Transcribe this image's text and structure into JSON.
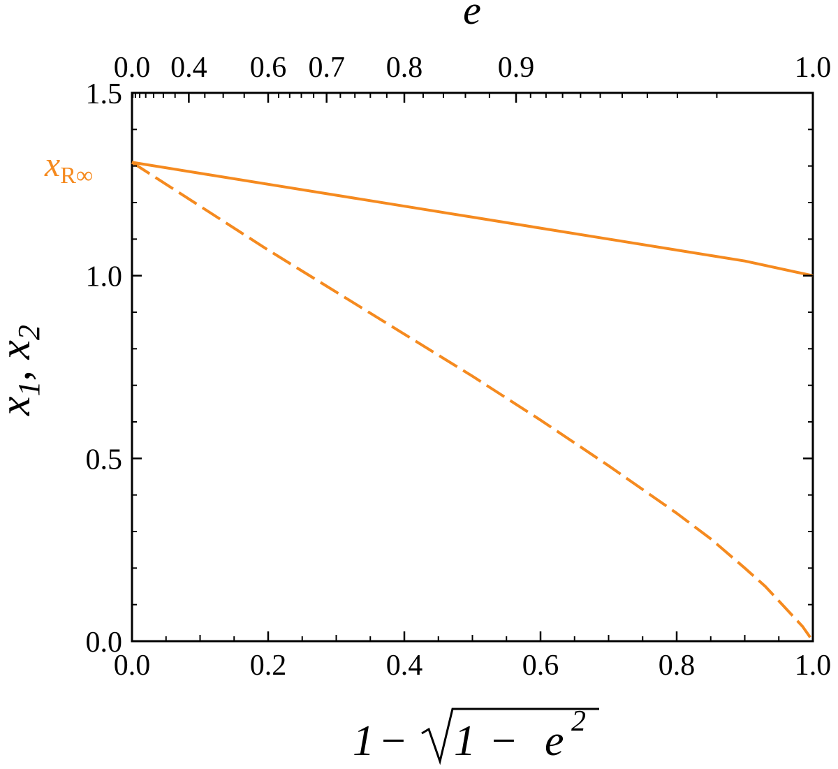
{
  "chart_data": {
    "type": "line",
    "title": "",
    "xlabel": {
      "parts": [
        "1",
        "−",
        "1",
        "−",
        "e",
        "2"
      ]
    },
    "ylabel": {
      "parts": [
        "x",
        "1",
        ", ",
        "x",
        "2"
      ]
    },
    "top_xlabel": "e",
    "xlim": [
      0,
      1
    ],
    "ylim": [
      0,
      1.5
    ],
    "x_ticks": [
      0.0,
      0.2,
      0.4,
      0.6,
      0.8,
      1.0
    ],
    "x_tick_labels": [
      "0.0",
      "0.2",
      "0.4",
      "0.6",
      "0.8",
      "1.0"
    ],
    "y_ticks": [
      0.0,
      0.5,
      1.0,
      1.5
    ],
    "y_tick_labels": [
      "0.0",
      "0.5",
      "1.0",
      "1.5"
    ],
    "top_ticks": [
      0.0,
      0.4,
      0.6,
      0.7,
      0.8,
      0.9,
      1.0
    ],
    "top_tick_labels": [
      "0.0",
      "0.4",
      "0.6",
      "0.7",
      "0.8",
      "0.9",
      "1.0"
    ],
    "grid": false,
    "series": [
      {
        "style": "solid",
        "color": "#F58A1F",
        "x": [
          0.0,
          0.1,
          0.2,
          0.3,
          0.4,
          0.5,
          0.6,
          0.7,
          0.8,
          0.9,
          1.0
        ],
        "y": [
          1.31,
          1.28,
          1.25,
          1.22,
          1.19,
          1.16,
          1.13,
          1.1,
          1.07,
          1.04,
          1.0
        ]
      },
      {
        "style": "dashed",
        "color": "#F58A1F",
        "x": [
          0.0,
          0.1,
          0.2,
          0.3,
          0.4,
          0.5,
          0.6,
          0.7,
          0.8,
          0.85,
          0.9,
          0.93,
          0.95,
          0.97,
          0.985,
          1.0
        ],
        "y": [
          1.31,
          1.19,
          1.07,
          0.955,
          0.84,
          0.725,
          0.605,
          0.48,
          0.35,
          0.28,
          0.2,
          0.15,
          0.11,
          0.07,
          0.04,
          0.0
        ]
      }
    ],
    "annotations": [
      {
        "y": 1.31,
        "label_main": "x",
        "label_sub": "R∞",
        "color": "#F58A1F"
      }
    ]
  }
}
